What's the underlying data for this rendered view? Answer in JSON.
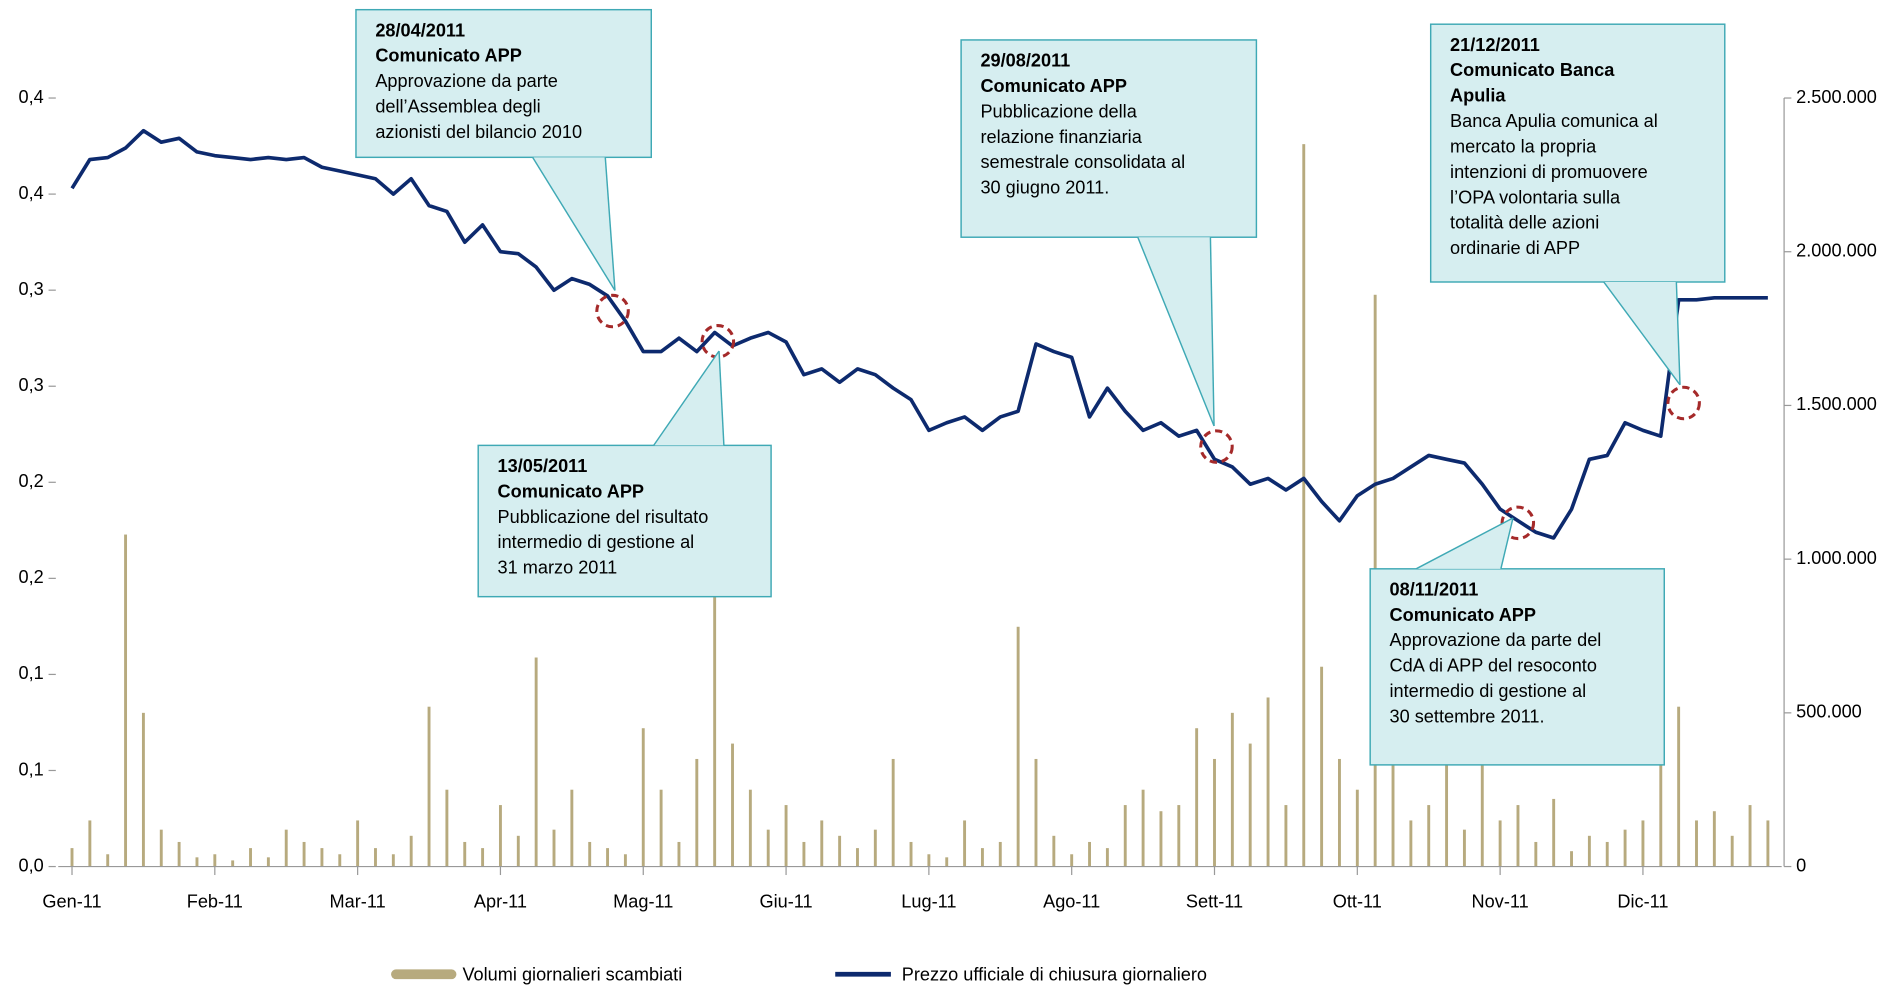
{
  "chart_data": {
    "type": "combo",
    "categories": [
      "Gen-11",
      null,
      null,
      null,
      null,
      null,
      null,
      null,
      "Feb-11",
      null,
      null,
      null,
      null,
      null,
      null,
      null,
      "Mar-11",
      null,
      null,
      null,
      null,
      null,
      null,
      null,
      "Apr-11",
      null,
      null,
      null,
      null,
      null,
      null,
      null,
      "Mag-11",
      null,
      null,
      null,
      null,
      null,
      null,
      null,
      "Giu-11",
      null,
      null,
      null,
      null,
      null,
      null,
      null,
      "Lug-11",
      null,
      null,
      null,
      null,
      null,
      null,
      null,
      "Ago-11",
      null,
      null,
      null,
      null,
      null,
      null,
      null,
      "Sett-11",
      null,
      null,
      null,
      null,
      null,
      null,
      null,
      "Ott-11",
      null,
      null,
      null,
      null,
      null,
      null,
      null,
      "Nov-11",
      null,
      null,
      null,
      null,
      null,
      null,
      null,
      "Dic-11",
      null,
      null,
      null,
      null,
      null,
      null,
      null
    ],
    "series": [
      {
        "name": "Volumi giornalieri scambiati",
        "type": "bar",
        "axis": "y2",
        "color": "#b7aa7e",
        "values": [
          60000,
          150000,
          40000,
          1080000,
          500000,
          120000,
          80000,
          30000,
          40000,
          20000,
          60000,
          30000,
          120000,
          80000,
          60000,
          40000,
          150000,
          60000,
          40000,
          100000,
          520000,
          250000,
          80000,
          60000,
          200000,
          100000,
          680000,
          120000,
          250000,
          80000,
          60000,
          40000,
          450000,
          250000,
          80000,
          350000,
          1430000,
          400000,
          250000,
          120000,
          200000,
          80000,
          150000,
          100000,
          60000,
          120000,
          350000,
          80000,
          40000,
          30000,
          150000,
          60000,
          80000,
          780000,
          350000,
          100000,
          40000,
          80000,
          60000,
          200000,
          250000,
          180000,
          200000,
          450000,
          350000,
          500000,
          400000,
          550000,
          200000,
          2350000,
          650000,
          350000,
          250000,
          1860000,
          400000,
          150000,
          200000,
          350000,
          120000,
          600000,
          150000,
          200000,
          80000,
          220000,
          50000,
          100000,
          80000,
          120000,
          150000,
          400000,
          520000,
          150000,
          180000,
          100000,
          200000,
          150000
        ]
      },
      {
        "name": "Prezzo ufficiale di chiusura giornaliero",
        "type": "line",
        "axis": "y",
        "color": "#0d2a6e",
        "values": [
          0.353,
          0.368,
          0.369,
          0.374,
          0.383,
          0.377,
          0.379,
          0.372,
          0.37,
          0.369,
          0.368,
          0.369,
          0.368,
          0.369,
          0.364,
          0.362,
          0.36,
          0.358,
          0.35,
          0.358,
          0.344,
          0.341,
          0.325,
          0.334,
          0.32,
          0.319,
          0.312,
          0.3,
          0.306,
          0.303,
          0.297,
          0.284,
          0.268,
          0.268,
          0.275,
          0.268,
          0.278,
          0.271,
          0.275,
          0.278,
          0.273,
          0.256,
          0.259,
          0.252,
          0.259,
          0.256,
          0.249,
          0.243,
          0.227,
          0.231,
          0.234,
          0.227,
          0.234,
          0.237,
          0.272,
          0.268,
          0.265,
          0.234,
          0.249,
          0.237,
          0.227,
          0.231,
          0.224,
          0.227,
          0.212,
          0.208,
          0.199,
          0.202,
          0.196,
          0.202,
          0.19,
          0.18,
          0.193,
          0.199,
          0.202,
          0.208,
          0.214,
          0.212,
          0.21,
          0.199,
          0.186,
          0.18,
          0.174,
          0.171,
          0.186,
          0.212,
          0.214,
          0.231,
          0.227,
          0.224,
          0.295,
          0.295,
          0.296,
          0.296,
          0.296,
          0.296
        ]
      }
    ],
    "ylim": [
      0,
      0.4
    ],
    "yticks": [
      {
        "value": 0,
        "label": "0,0"
      },
      {
        "value": 0.05,
        "label": "0,1"
      },
      {
        "value": 0.1,
        "label": "0,1"
      },
      {
        "value": 0.15,
        "label": "0,2"
      },
      {
        "value": 0.2,
        "label": "0,2"
      },
      {
        "value": 0.25,
        "label": "0,3"
      },
      {
        "value": 0.3,
        "label": "0,3"
      },
      {
        "value": 0.35,
        "label": "0,4"
      },
      {
        "value": 0.4,
        "label": "0,4"
      }
    ],
    "y2lim": [
      0,
      2500000
    ],
    "y2ticks": [
      0,
      {
        "value": 500000,
        "label": "500.000"
      },
      {
        "value": 1000000,
        "label": "1.000.000"
      },
      {
        "value": 1500000,
        "label": "1.500.000"
      },
      {
        "value": 2000000,
        "label": "2.000.000"
      },
      {
        "value": 2500000,
        "label": "2.500.000"
      }
    ],
    "legend": "bottom",
    "annotations": [
      {
        "date": "28/04/2011",
        "title": [
          "Comunicato APP"
        ],
        "text": [
          "Approvazione da parte",
          "dell’Assemblea degli",
          "azionisti del bilancio 2010"
        ]
      },
      {
        "date": "13/05/2011",
        "title": [
          "Comunicato APP"
        ],
        "text": [
          "Pubblicazione del risultato",
          "intermedio di gestione al",
          "31 marzo 2011"
        ]
      },
      {
        "date": "29/08/2011",
        "title": [
          "Comunicato APP"
        ],
        "text": [
          "Pubblicazione della",
          "relazione finanziaria",
          "semestrale consolidata al",
          "30 giugno 2011."
        ]
      },
      {
        "date": "21/12/2011",
        "title": [
          "Comunicato Banca",
          "Apulia"
        ],
        "text": [
          "Banca Apulia comunica al",
          "mercato la propria",
          "intenzioni di promuovere",
          "l’OPA volontaria sulla",
          "totalità delle azioni",
          "ordinarie di APP"
        ]
      },
      {
        "date": "08/11/2011",
        "title": [
          "Comunicato APP"
        ],
        "text": [
          "Approvazione da parte del",
          "CdA di APP del resoconto",
          "intermedio di gestione al",
          "30 settembre 2011."
        ]
      }
    ]
  }
}
